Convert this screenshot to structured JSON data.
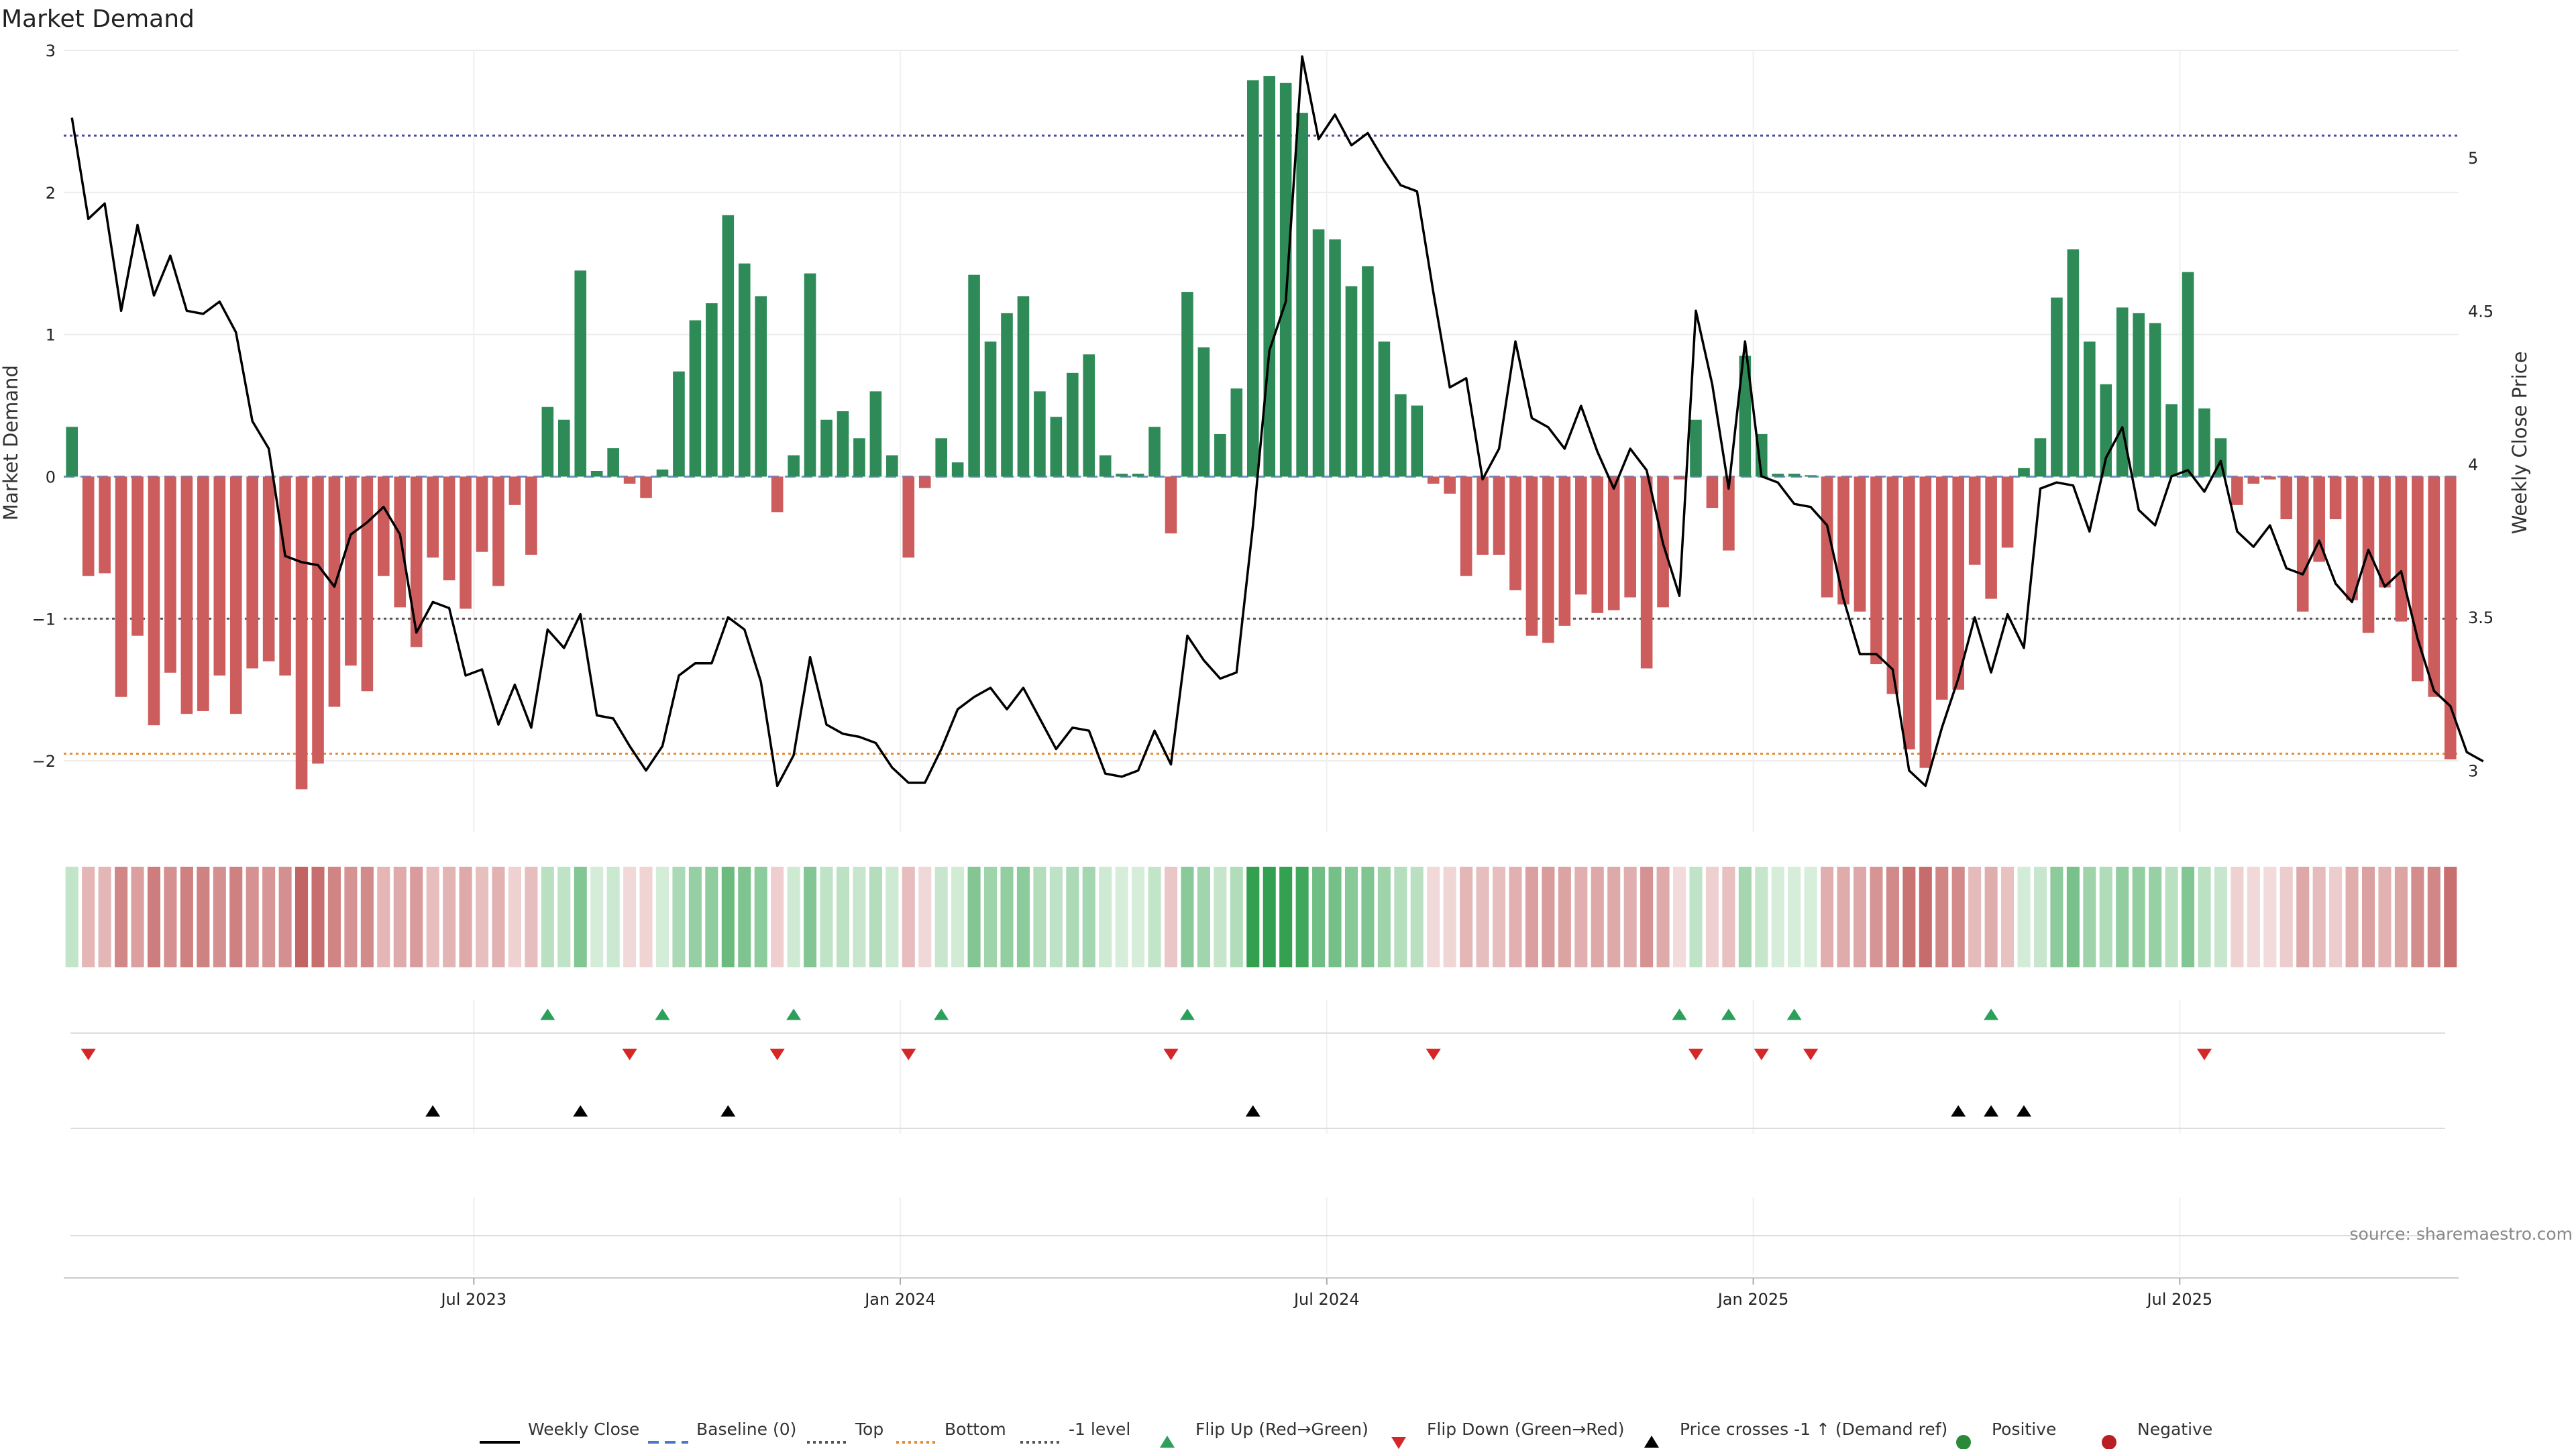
{
  "chart_data": {
    "type": "bar",
    "title": "Market Demand",
    "ylabel": "Market Demand",
    "y2label": "Weekly Close Price",
    "ylim": [
      -2.5,
      3.0
    ],
    "y2lim": [
      2.8,
      5.35
    ],
    "yticks": [
      3,
      2,
      1,
      0,
      -1,
      -2
    ],
    "yticklabels": [
      "3",
      "2",
      "1",
      "0",
      "−1",
      "−2"
    ],
    "y2ticks": [
      5,
      4.5,
      4,
      3.5,
      3
    ],
    "y2ticklabels": [
      "5",
      "4.5",
      "4",
      "3.5",
      "3"
    ],
    "xtick_positions": [
      25,
      51,
      77,
      103,
      129
    ],
    "xticklabels": [
      "Jul 2023",
      "Jan 2024",
      "Jul 2024",
      "Jan 2025",
      "Jul 2025"
    ],
    "reference_lines": {
      "baseline": 0,
      "top": 2.4,
      "bottom": -1.95,
      "minus_one": -1.0
    },
    "demand": [
      0.35,
      -0.7,
      -0.68,
      -1.55,
      -1.12,
      -1.75,
      -1.38,
      -1.67,
      -1.65,
      -1.4,
      -1.67,
      -1.35,
      -1.3,
      -1.4,
      -2.2,
      -2.02,
      -1.62,
      -1.33,
      -1.51,
      -0.7,
      -0.92,
      -1.2,
      -0.57,
      -0.73,
      -0.93,
      -0.53,
      -0.77,
      -0.2,
      -0.55,
      0.49,
      0.4,
      1.45,
      0.04,
      0.2,
      -0.05,
      -0.15,
      0.05,
      0.74,
      1.1,
      1.22,
      1.84,
      1.5,
      1.27,
      -0.25,
      0.15,
      1.43,
      0.4,
      0.46,
      0.27,
      0.6,
      0.15,
      -0.57,
      -0.08,
      0.27,
      0.1,
      1.42,
      0.95,
      1.15,
      1.27,
      0.6,
      0.42,
      0.73,
      0.86,
      0.15,
      0.02,
      0.02,
      0.35,
      -0.4,
      1.3,
      0.91,
      0.3,
      0.62,
      2.79,
      2.82,
      2.77,
      2.56,
      1.74,
      1.67,
      1.34,
      1.48,
      0.95,
      0.58,
      0.5,
      -0.05,
      -0.12,
      -0.7,
      -0.55,
      -0.55,
      -0.8,
      -1.12,
      -1.17,
      -1.05,
      -0.83,
      -0.96,
      -0.94,
      -0.85,
      -1.35,
      -0.92,
      -0.02,
      0.4,
      -0.22,
      -0.52,
      0.85,
      0.3,
      0.02,
      0.02,
      0.01,
      -0.85,
      -0.9,
      -0.95,
      -1.32,
      -1.53,
      -1.92,
      -2.05,
      -1.57,
      -1.5,
      -0.62,
      -0.86,
      -0.5,
      0.06,
      0.27,
      1.26,
      1.6,
      0.95,
      0.65,
      1.19,
      1.15,
      1.08,
      0.51,
      1.44,
      0.48,
      0.27,
      -0.2,
      -0.05,
      -0.02,
      -0.3,
      -0.95,
      -0.6,
      -0.3,
      -0.87,
      -1.1,
      -0.78,
      -1.02,
      -1.44,
      -1.55,
      -1.99
    ],
    "weekly_close": [
      5.13,
      4.8,
      4.85,
      4.5,
      4.78,
      4.55,
      4.68,
      4.5,
      4.49,
      4.53,
      4.43,
      4.14,
      4.05,
      3.7,
      3.68,
      3.67,
      3.6,
      3.77,
      3.81,
      3.86,
      3.77,
      3.45,
      3.55,
      3.53,
      3.31,
      3.33,
      3.15,
      3.28,
      3.14,
      3.46,
      3.4,
      3.51,
      3.18,
      3.17,
      3.08,
      3.0,
      3.08,
      3.31,
      3.35,
      3.35,
      3.5,
      3.46,
      3.29,
      2.95,
      3.05,
      3.37,
      3.15,
      3.12,
      3.11,
      3.09,
      3.01,
      2.96,
      2.96,
      3.07,
      3.2,
      3.24,
      3.27,
      3.2,
      3.27,
      3.17,
      3.07,
      3.14,
      3.13,
      2.99,
      2.98,
      3.0,
      3.13,
      3.02,
      3.44,
      3.36,
      3.3,
      3.32,
      3.8,
      4.37,
      4.53,
      5.33,
      5.06,
      5.14,
      5.04,
      5.08,
      4.99,
      4.91,
      4.89,
      4.56,
      4.25,
      4.28,
      3.95,
      4.05,
      4.4,
      4.15,
      4.12,
      4.05,
      4.19,
      4.04,
      3.92,
      4.05,
      3.98,
      3.74,
      3.57,
      4.5,
      4.26,
      3.92,
      4.4,
      3.96,
      3.94,
      3.87,
      3.86,
      3.8,
      3.56,
      3.38,
      3.38,
      3.33,
      3.0,
      2.95,
      3.14,
      3.3,
      3.5,
      3.32,
      3.51,
      3.4,
      3.92,
      3.94,
      3.93,
      3.78,
      4.02,
      4.12,
      3.85,
      3.8,
      3.96,
      3.98,
      3.91,
      4.01,
      3.78,
      3.73,
      3.8,
      3.66,
      3.64,
      3.75,
      3.61,
      3.55,
      3.72,
      3.6,
      3.65,
      3.43,
      3.26,
      3.21,
      3.06,
      3.03
    ],
    "flip_up": [
      29,
      36,
      44,
      53,
      68,
      98,
      101,
      105,
      117
    ],
    "flip_down": [
      1,
      34,
      43,
      51,
      67,
      83,
      99,
      103,
      106,
      130
    ],
    "price_cross": [
      22,
      31,
      40,
      72,
      115,
      117,
      119
    ],
    "legend": [
      {
        "label": "Weekly Close",
        "marker": "line",
        "color": "#000000"
      },
      {
        "label": "Baseline (0)",
        "marker": "dashed",
        "color": "#4c78c8"
      },
      {
        "label": "Top",
        "marker": "dotted",
        "color": "#555555"
      },
      {
        "label": "Bottom",
        "marker": "dotted",
        "color": "#e88a2e"
      },
      {
        "label": "-1 level",
        "marker": "dotted",
        "color": "#555555"
      },
      {
        "label": "Flip Up (Red→Green)",
        "marker": "triangle-up",
        "color": "#2ca05a"
      },
      {
        "label": "Flip Down (Green→Red)",
        "marker": "triangle-down",
        "color": "#d62728"
      },
      {
        "label": "Price crosses -1 ↑ (Demand ref)",
        "marker": "triangle-up",
        "color": "#000000"
      },
      {
        "label": "Positive",
        "marker": "circle",
        "color": "#2a8a3a"
      },
      {
        "label": "Negative",
        "marker": "circle",
        "color": "#b82025"
      }
    ],
    "source": "source: sharemaestro.com",
    "colors": {
      "positive_bar": "#2e8b57",
      "negative_bar": "#cd5c5c",
      "top_line": "#4a4a9a",
      "bottom_line": "#e88a2e",
      "minus_one_line": "#555555",
      "close_line": "#000000"
    }
  }
}
